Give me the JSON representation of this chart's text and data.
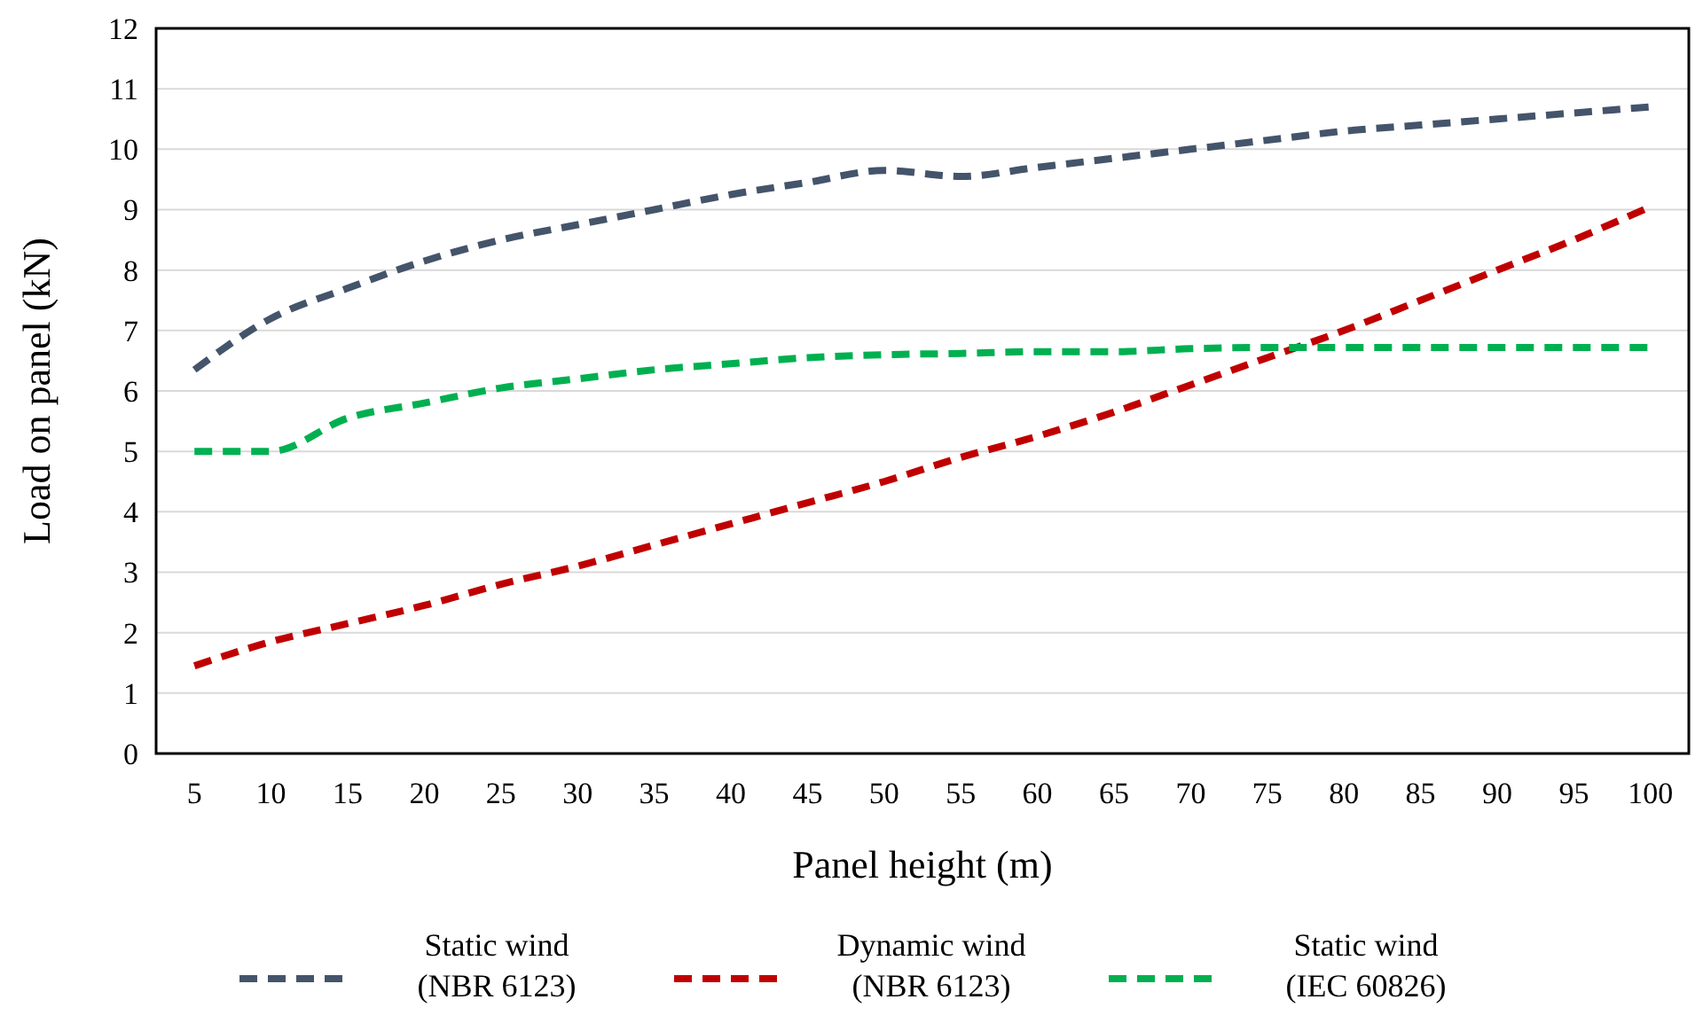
{
  "chart_data": {
    "type": "line",
    "xlabel": "Panel height (m)",
    "ylabel": "Load on panel (kN)",
    "categories": [
      "5",
      "10",
      "15",
      "20",
      "25",
      "30",
      "35",
      "40",
      "45",
      "50",
      "55",
      "60",
      "65",
      "70",
      "75",
      "80",
      "85",
      "90",
      "95",
      "100"
    ],
    "ylim": [
      0,
      12
    ],
    "yticks": [
      0,
      1,
      2,
      3,
      4,
      5,
      6,
      7,
      8,
      9,
      10,
      11,
      12
    ],
    "grid": "y",
    "legend": "bottom",
    "line_style": "dashed",
    "series": [
      {
        "name": "Static wind\n(NBR 6123)",
        "color": "#44546a",
        "values": [
          6.35,
          7.2,
          7.7,
          8.15,
          8.5,
          8.75,
          9.0,
          9.25,
          9.45,
          9.65,
          9.55,
          9.7,
          9.85,
          10.0,
          10.15,
          10.3,
          10.4,
          10.5,
          10.6,
          10.7
        ]
      },
      {
        "name": "Dynamic wind\n(NBR 6123)",
        "color": "#c00000",
        "values": [
          1.45,
          1.85,
          2.15,
          2.45,
          2.8,
          3.1,
          3.45,
          3.8,
          4.15,
          4.5,
          4.9,
          5.25,
          5.65,
          6.1,
          6.55,
          7.0,
          7.5,
          8.0,
          8.5,
          9.05
        ]
      },
      {
        "name": "Static wind\n(IEC 60826)",
        "color": "#00b050",
        "values": [
          5.0,
          5.0,
          5.55,
          5.8,
          6.05,
          6.2,
          6.35,
          6.45,
          6.55,
          6.6,
          6.62,
          6.65,
          6.65,
          6.7,
          6.72,
          6.72,
          6.72,
          6.72,
          6.72,
          6.72
        ]
      }
    ]
  }
}
